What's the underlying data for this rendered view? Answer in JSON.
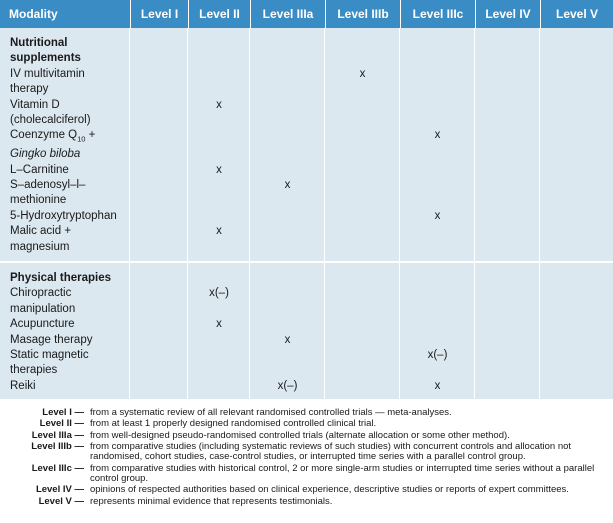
{
  "table": {
    "columns": [
      "Modality",
      "Level I",
      "Level II",
      "Level IIIa",
      "Level IIIb",
      "Level IIIc",
      "Level IV",
      "Level V"
    ],
    "sections": [
      {
        "title": [
          "Nutritional",
          "supplements"
        ],
        "rows": [
          {
            "label": [
              "IV multivitamin",
              "therapy"
            ],
            "cells": [
              null,
              null,
              null,
              "x",
              null,
              null,
              null
            ]
          },
          {
            "label": [
              "Vitamin D",
              "(cholecalciferol)"
            ],
            "cells": [
              null,
              "x",
              null,
              null,
              null,
              null,
              null
            ]
          },
          {
            "label": [
              {
                "text": "Coenzyme Q",
                "sub": "10",
                "after": " +"
              },
              {
                "text": "Gingko biloba",
                "italic": true
              }
            ],
            "cells": [
              null,
              null,
              null,
              null,
              "x",
              null,
              null
            ]
          },
          {
            "label": [
              "L–Carnitine"
            ],
            "cells": [
              null,
              "x",
              null,
              null,
              null,
              null,
              null
            ]
          },
          {
            "label": [
              "S–adenosyl–l–",
              "methionine"
            ],
            "cells": [
              null,
              null,
              "x",
              null,
              null,
              null,
              null
            ]
          },
          {
            "label": [
              "5-Hydroxytryptophan"
            ],
            "cells": [
              null,
              null,
              null,
              null,
              "x",
              null,
              null
            ]
          },
          {
            "label": [
              "Malic acid +",
              "magnesium"
            ],
            "cells": [
              null,
              "x",
              null,
              null,
              null,
              null,
              null
            ]
          }
        ]
      },
      {
        "title": [
          "Physical therapies"
        ],
        "rows": [
          {
            "label": [
              "Chiropractic",
              "manipulation"
            ],
            "cells": [
              null,
              "x(–)",
              null,
              null,
              null,
              null,
              null
            ]
          },
          {
            "label": [
              "Acupuncture"
            ],
            "cells": [
              null,
              "x",
              null,
              null,
              null,
              null,
              null
            ]
          },
          {
            "label": [
              "Masage therapy"
            ],
            "cells": [
              null,
              null,
              "x",
              null,
              null,
              null,
              null
            ]
          },
          {
            "label": [
              "Static magnetic",
              "therapies"
            ],
            "cells": [
              null,
              null,
              null,
              null,
              "x(–)",
              null,
              null
            ]
          },
          {
            "label": [
              "Reiki"
            ],
            "cells": [
              null,
              null,
              "x(–)",
              null,
              "x",
              null,
              null
            ]
          }
        ]
      }
    ],
    "notes": [
      {
        "level": "Level I —",
        "text": "from a systematic review of all relevant randomised controlled trials — meta-analyses."
      },
      {
        "level": "Level II —",
        "text": "from at least 1 properly designed randomised controlled clinical trial."
      },
      {
        "level": "Level IIIa —",
        "text": "from well-designed pseudo-randomised controlled trials (alternate allocation or some other method)."
      },
      {
        "level": "Level IIIb —",
        "text": "from comparative studies (including systematic reviews of such studies) with concurrent controls and allocation not randomised, cohort studies, case-control studies, or interrupted time series with a parallel control group."
      },
      {
        "level": "Level IIIc —",
        "text": "from comparative studies with historical control, 2 or more single-arm studies or interrupted time series without a parallel control group."
      },
      {
        "level": "Level IV —",
        "text": "opinions of respected authorities based on clinical experience, descriptive studies or reports of expert committees."
      },
      {
        "level": "Level V —",
        "text": "represents minimal evidence that represents testimonials."
      }
    ]
  }
}
